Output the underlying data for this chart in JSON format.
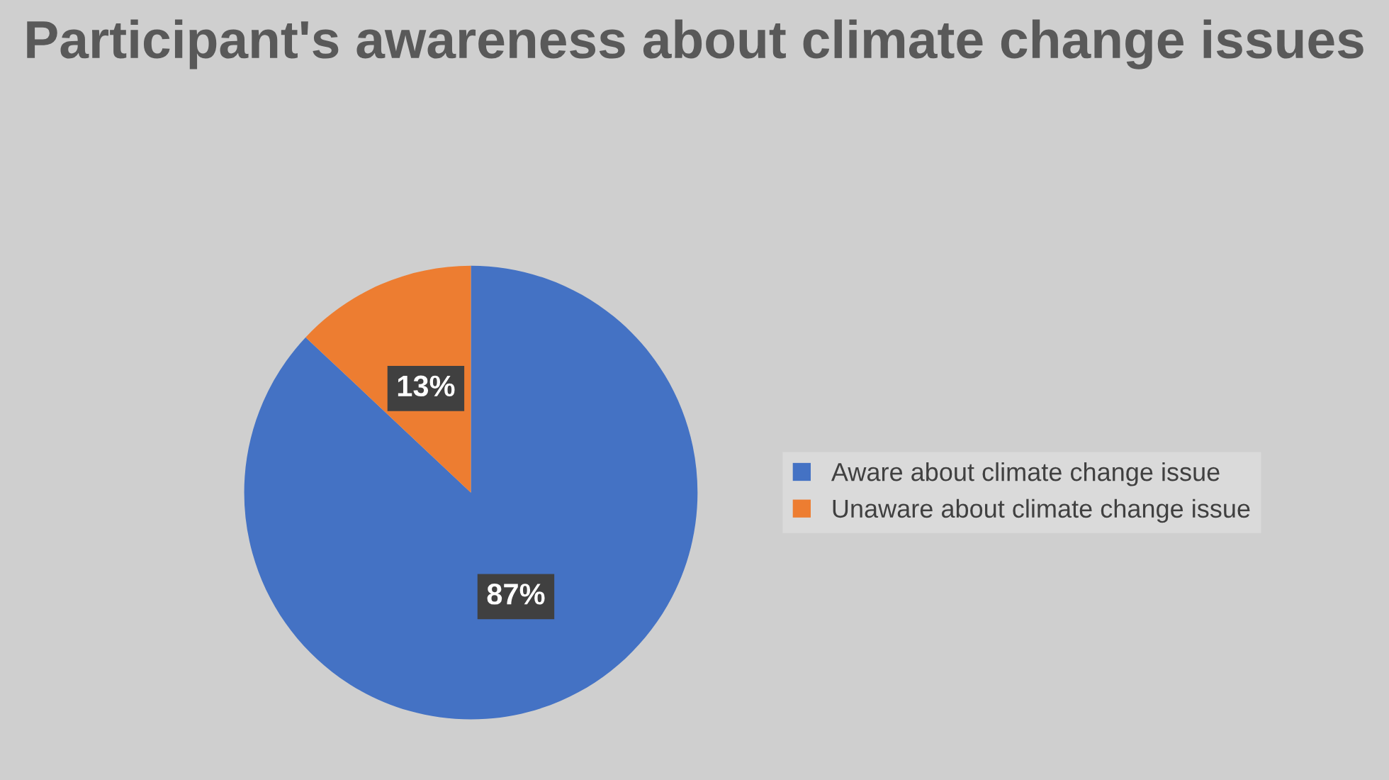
{
  "chart_data": {
    "type": "pie",
    "title": "Participant's awareness about climate change issues",
    "categories": [
      "Aware about climate change issue",
      "Unaware about climate change issue"
    ],
    "values": [
      87,
      13
    ],
    "colors": [
      "#4472c4",
      "#ed7d31"
    ],
    "value_labels": [
      "87%",
      "13%"
    ],
    "legend": "right"
  }
}
